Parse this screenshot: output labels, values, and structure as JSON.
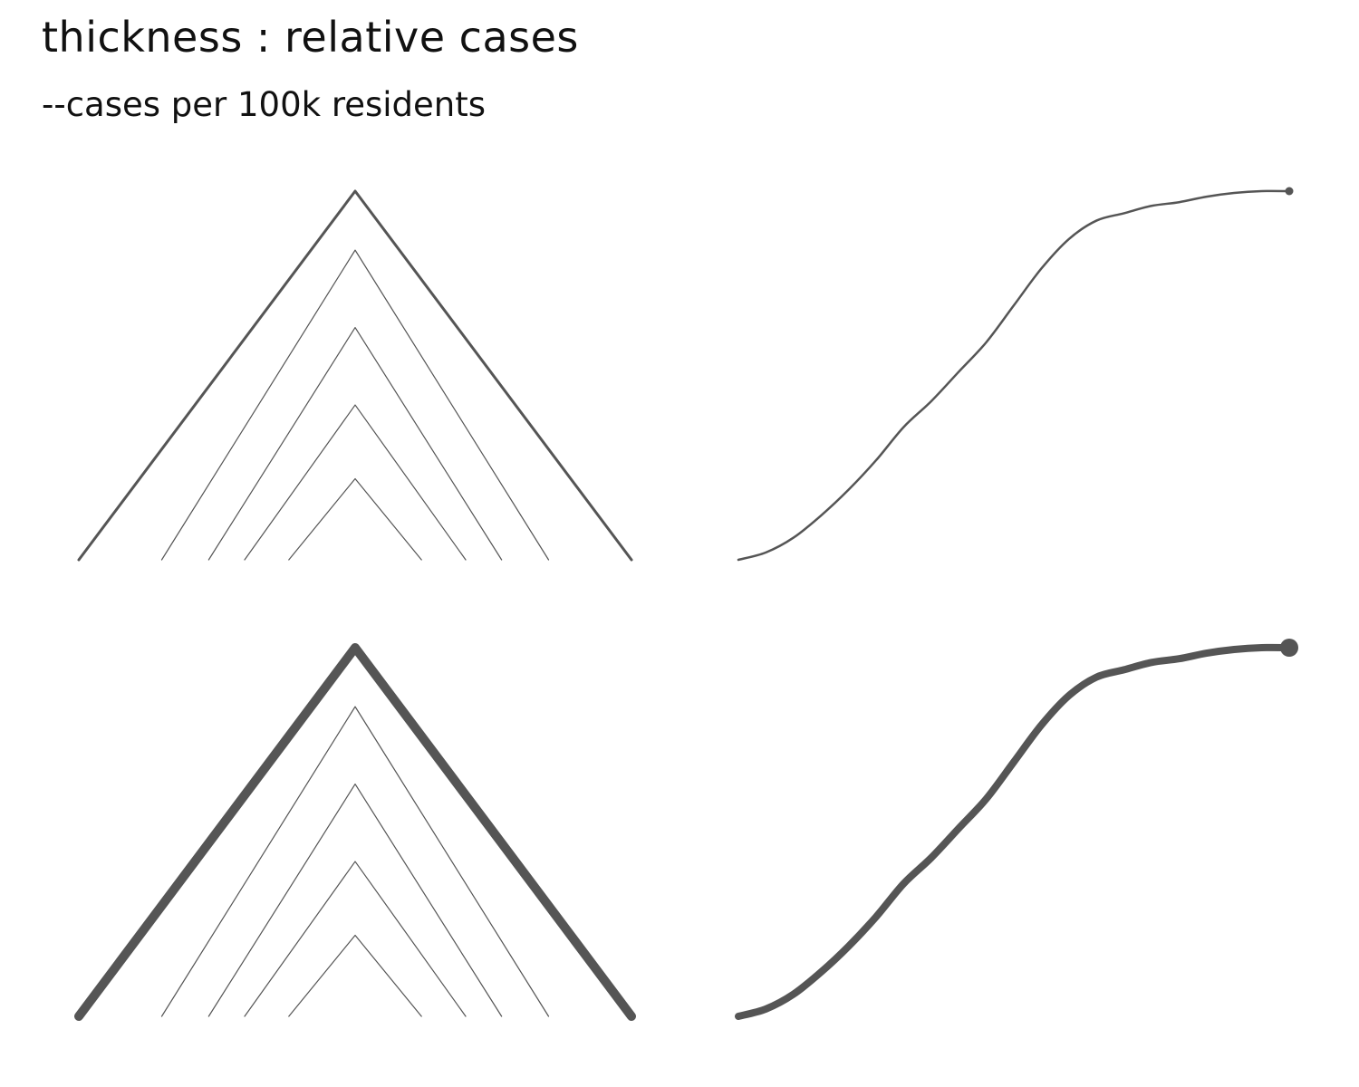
{
  "header": {
    "title": "thickness : relative cases",
    "subtitle": "--cases per 100k residents"
  },
  "colors": {
    "stroke": "#555555",
    "background": "#ffffff"
  },
  "chart_data": [
    {
      "type": "line",
      "variant": "nested-triangles",
      "row": "top",
      "emphasis": "thin",
      "triangles": [
        {
          "level": 1.0,
          "base": 1.0
        },
        {
          "level": 0.84,
          "base": 0.7
        },
        {
          "level": 0.63,
          "base": 0.53
        },
        {
          "level": 0.42,
          "base": 0.4
        },
        {
          "level": 0.22,
          "base": 0.24
        }
      ]
    },
    {
      "type": "line",
      "variant": "cumulative-curve",
      "row": "top",
      "emphasis": "thin",
      "x": [
        0,
        0.05,
        0.1,
        0.15,
        0.2,
        0.25,
        0.3,
        0.35,
        0.4,
        0.45,
        0.5,
        0.55,
        0.6,
        0.65,
        0.7,
        0.75,
        0.8,
        0.85,
        0.9,
        0.95,
        1
      ],
      "y": [
        0,
        0.02,
        0.06,
        0.12,
        0.19,
        0.27,
        0.36,
        0.43,
        0.51,
        0.59,
        0.69,
        0.79,
        0.87,
        0.92,
        0.94,
        0.96,
        0.97,
        0.985,
        0.995,
        1,
        1
      ]
    },
    {
      "type": "line",
      "variant": "nested-triangles",
      "row": "bottom",
      "emphasis": "thick",
      "triangles": [
        {
          "level": 1.0,
          "base": 1.0
        },
        {
          "level": 0.84,
          "base": 0.7
        },
        {
          "level": 0.63,
          "base": 0.53
        },
        {
          "level": 0.42,
          "base": 0.4
        },
        {
          "level": 0.22,
          "base": 0.24
        }
      ]
    },
    {
      "type": "line",
      "variant": "cumulative-curve",
      "row": "bottom",
      "emphasis": "thick",
      "x": [
        0,
        0.05,
        0.1,
        0.15,
        0.2,
        0.25,
        0.3,
        0.35,
        0.4,
        0.45,
        0.5,
        0.55,
        0.6,
        0.65,
        0.7,
        0.75,
        0.8,
        0.85,
        0.9,
        0.95,
        1
      ],
      "y": [
        0,
        0.02,
        0.06,
        0.12,
        0.19,
        0.27,
        0.36,
        0.43,
        0.51,
        0.59,
        0.69,
        0.79,
        0.87,
        0.92,
        0.94,
        0.96,
        0.97,
        0.985,
        0.995,
        1,
        1
      ]
    }
  ]
}
